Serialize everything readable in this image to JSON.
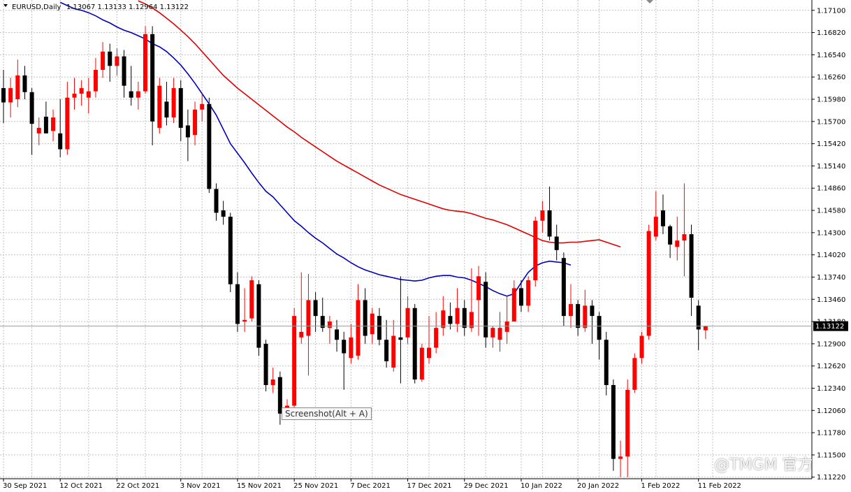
{
  "header": {
    "symbol": "EURUSD,Daily",
    "ohlc": "1.13067 1.13133 1.12964 1.13122"
  },
  "tooltip": "Screenshot(Alt + A)",
  "watermark": "@TMGM 官方",
  "colors": {
    "bull": "#ff0000",
    "bear": "#000000",
    "ma_fast": "#0000bb",
    "ma_slow": "#e00000",
    "grid": "#c0c0c0",
    "price_tag_bg": "#000000"
  },
  "chart_data": {
    "type": "candlestick",
    "title": "EURUSD,Daily",
    "ylim": [
      1.112,
      1.1723
    ],
    "y_ticks": [
      "1.17100",
      "1.16820",
      "1.16540",
      "1.16260",
      "1.15980",
      "1.15700",
      "1.15420",
      "1.15140",
      "1.14860",
      "1.14580",
      "1.14300",
      "1.14020",
      "1.13740",
      "1.13460",
      "1.13180",
      "1.12900",
      "1.12620",
      "1.12340",
      "1.12060",
      "1.11780",
      "1.11500",
      "1.11220"
    ],
    "x_labels": [
      {
        "index": 0,
        "label": "30 Sep 2021"
      },
      {
        "index": 8,
        "label": "12 Oct 2021"
      },
      {
        "index": 16,
        "label": "22 Oct 2021"
      },
      {
        "index": 25,
        "label": "3 Nov 2021"
      },
      {
        "index": 33,
        "label": "15 Nov 2021"
      },
      {
        "index": 41,
        "label": "25 Nov 2021"
      },
      {
        "index": 49,
        "label": "7 Dec 2021"
      },
      {
        "index": 57,
        "label": "17 Dec 2021"
      },
      {
        "index": 65,
        "label": "29 Dec 2021"
      },
      {
        "index": 73,
        "label": "10 Jan 2022"
      },
      {
        "index": 81,
        "label": "20 Jan 2022"
      },
      {
        "index": 90,
        "label": "1 Feb 2022"
      },
      {
        "index": 98,
        "label": "11 Feb 2022"
      }
    ],
    "current_price": "1.13122",
    "grid": true,
    "candles": [
      {
        "o": 1.1612,
        "h": 1.1635,
        "l": 1.1568,
        "c": 1.1594
      },
      {
        "o": 1.1594,
        "h": 1.1625,
        "l": 1.1575,
        "c": 1.1612
      },
      {
        "o": 1.1598,
        "h": 1.1648,
        "l": 1.1588,
        "c": 1.1628
      },
      {
        "o": 1.1628,
        "h": 1.164,
        "l": 1.1598,
        "c": 1.1607
      },
      {
        "o": 1.1607,
        "h": 1.1612,
        "l": 1.1528,
        "c": 1.1567
      },
      {
        "o": 1.1555,
        "h": 1.1575,
        "l": 1.154,
        "c": 1.1562
      },
      {
        "o": 1.1576,
        "h": 1.1595,
        "l": 1.1555,
        "c": 1.1555
      },
      {
        "o": 1.1558,
        "h": 1.1585,
        "l": 1.1545,
        "c": 1.1575
      },
      {
        "o": 1.1555,
        "h": 1.1598,
        "l": 1.1525,
        "c": 1.1535
      },
      {
        "o": 1.1535,
        "h": 1.162,
        "l": 1.1528,
        "c": 1.16
      },
      {
        "o": 1.16,
        "h": 1.1625,
        "l": 1.1585,
        "c": 1.1605
      },
      {
        "o": 1.1605,
        "h": 1.1622,
        "l": 1.159,
        "c": 1.1612
      },
      {
        "o": 1.16,
        "h": 1.1625,
        "l": 1.158,
        "c": 1.1608
      },
      {
        "o": 1.1608,
        "h": 1.165,
        "l": 1.16,
        "c": 1.1635
      },
      {
        "o": 1.1635,
        "h": 1.167,
        "l": 1.1625,
        "c": 1.1658
      },
      {
        "o": 1.1658,
        "h": 1.1668,
        "l": 1.162,
        "c": 1.164
      },
      {
        "o": 1.164,
        "h": 1.1662,
        "l": 1.1628,
        "c": 1.1652
      },
      {
        "o": 1.1652,
        "h": 1.166,
        "l": 1.16,
        "c": 1.1615
      },
      {
        "o": 1.1608,
        "h": 1.164,
        "l": 1.159,
        "c": 1.16
      },
      {
        "o": 1.16,
        "h": 1.162,
        "l": 1.1585,
        "c": 1.1608
      },
      {
        "o": 1.1608,
        "h": 1.169,
        "l": 1.1605,
        "c": 1.168
      },
      {
        "o": 1.168,
        "h": 1.169,
        "l": 1.154,
        "c": 1.157
      },
      {
        "o": 1.1562,
        "h": 1.1625,
        "l": 1.1555,
        "c": 1.1615
      },
      {
        "o": 1.1595,
        "h": 1.162,
        "l": 1.1565,
        "c": 1.1575
      },
      {
        "o": 1.1575,
        "h": 1.1625,
        "l": 1.1568,
        "c": 1.1612
      },
      {
        "o": 1.1612,
        "h": 1.1622,
        "l": 1.1545,
        "c": 1.1562
      },
      {
        "o": 1.1565,
        "h": 1.1585,
        "l": 1.152,
        "c": 1.155
      },
      {
        "o": 1.1553,
        "h": 1.1595,
        "l": 1.154,
        "c": 1.1585
      },
      {
        "o": 1.1585,
        "h": 1.1605,
        "l": 1.157,
        "c": 1.1592
      },
      {
        "o": 1.1592,
        "h": 1.16,
        "l": 1.148,
        "c": 1.1485
      },
      {
        "o": 1.1485,
        "h": 1.1492,
        "l": 1.1445,
        "c": 1.1455
      },
      {
        "o": 1.1458,
        "h": 1.147,
        "l": 1.144,
        "c": 1.145
      },
      {
        "o": 1.145,
        "h": 1.1455,
        "l": 1.1355,
        "c": 1.1365
      },
      {
        "o": 1.1365,
        "h": 1.138,
        "l": 1.1305,
        "c": 1.1315
      },
      {
        "o": 1.1318,
        "h": 1.136,
        "l": 1.1305,
        "c": 1.132
      },
      {
        "o": 1.1322,
        "h": 1.1375,
        "l": 1.1318,
        "c": 1.137
      },
      {
        "o": 1.1365,
        "h": 1.137,
        "l": 1.1275,
        "c": 1.1285
      },
      {
        "o": 1.129,
        "h": 1.1295,
        "l": 1.123,
        "c": 1.1238
      },
      {
        "o": 1.1238,
        "h": 1.126,
        "l": 1.1228,
        "c": 1.1245
      },
      {
        "o": 1.1248,
        "h": 1.1255,
        "l": 1.1188,
        "c": 1.1202
      },
      {
        "o": 1.1202,
        "h": 1.122,
        "l": 1.1194,
        "c": 1.1212
      },
      {
        "o": 1.1212,
        "h": 1.1335,
        "l": 1.121,
        "c": 1.1325
      },
      {
        "o": 1.1298,
        "h": 1.138,
        "l": 1.129,
        "c": 1.1305
      },
      {
        "o": 1.13,
        "h": 1.1378,
        "l": 1.125,
        "c": 1.1345
      },
      {
        "o": 1.1345,
        "h": 1.1355,
        "l": 1.1305,
        "c": 1.1325
      },
      {
        "o": 1.1325,
        "h": 1.1348,
        "l": 1.1305,
        "c": 1.131
      },
      {
        "o": 1.131,
        "h": 1.1325,
        "l": 1.129,
        "c": 1.1318
      },
      {
        "o": 1.1308,
        "h": 1.132,
        "l": 1.128,
        "c": 1.1295
      },
      {
        "o": 1.1295,
        "h": 1.1305,
        "l": 1.1232,
        "c": 1.1278
      },
      {
        "o": 1.1272,
        "h": 1.1315,
        "l": 1.1265,
        "c": 1.1298
      },
      {
        "o": 1.1275,
        "h": 1.1365,
        "l": 1.127,
        "c": 1.1345
      },
      {
        "o": 1.1345,
        "h": 1.136,
        "l": 1.129,
        "c": 1.13
      },
      {
        "o": 1.1302,
        "h": 1.1335,
        "l": 1.129,
        "c": 1.1328
      },
      {
        "o": 1.1325,
        "h": 1.1335,
        "l": 1.1288,
        "c": 1.1295
      },
      {
        "o": 1.1295,
        "h": 1.132,
        "l": 1.126,
        "c": 1.1268
      },
      {
        "o": 1.126,
        "h": 1.132,
        "l": 1.1255,
        "c": 1.13
      },
      {
        "o": 1.1298,
        "h": 1.1375,
        "l": 1.124,
        "c": 1.1295
      },
      {
        "o": 1.1298,
        "h": 1.135,
        "l": 1.129,
        "c": 1.1335
      },
      {
        "o": 1.1335,
        "h": 1.134,
        "l": 1.124,
        "c": 1.1245
      },
      {
        "o": 1.1245,
        "h": 1.129,
        "l": 1.1242,
        "c": 1.1285
      },
      {
        "o": 1.1272,
        "h": 1.1325,
        "l": 1.1265,
        "c": 1.1285
      },
      {
        "o": 1.1285,
        "h": 1.133,
        "l": 1.1278,
        "c": 1.131
      },
      {
        "o": 1.131,
        "h": 1.135,
        "l": 1.13,
        "c": 1.1332
      },
      {
        "o": 1.1325,
        "h": 1.1342,
        "l": 1.1308,
        "c": 1.1315
      },
      {
        "o": 1.1315,
        "h": 1.136,
        "l": 1.1305,
        "c": 1.1335
      },
      {
        "o": 1.1335,
        "h": 1.1345,
        "l": 1.13,
        "c": 1.131
      },
      {
        "o": 1.131,
        "h": 1.1385,
        "l": 1.1305,
        "c": 1.133
      },
      {
        "o": 1.1345,
        "h": 1.1388,
        "l": 1.13,
        "c": 1.1375
      },
      {
        "o": 1.1368,
        "h": 1.138,
        "l": 1.1285,
        "c": 1.1298
      },
      {
        "o": 1.1298,
        "h": 1.1312,
        "l": 1.1285,
        "c": 1.131
      },
      {
        "o": 1.1295,
        "h": 1.133,
        "l": 1.128,
        "c": 1.131
      },
      {
        "o": 1.1305,
        "h": 1.135,
        "l": 1.129,
        "c": 1.1318
      },
      {
        "o": 1.1318,
        "h": 1.137,
        "l": 1.1318,
        "c": 1.136
      },
      {
        "o": 1.136,
        "h": 1.137,
        "l": 1.133,
        "c": 1.1338
      },
      {
        "o": 1.1338,
        "h": 1.1375,
        "l": 1.133,
        "c": 1.137
      },
      {
        "o": 1.137,
        "h": 1.145,
        "l": 1.1362,
        "c": 1.1445
      },
      {
        "o": 1.1445,
        "h": 1.147,
        "l": 1.143,
        "c": 1.1458
      },
      {
        "o": 1.1458,
        "h": 1.1488,
        "l": 1.142,
        "c": 1.1425
      },
      {
        "o": 1.1425,
        "h": 1.144,
        "l": 1.1395,
        "c": 1.1408
      },
      {
        "o": 1.1398,
        "h": 1.1405,
        "l": 1.1312,
        "c": 1.1325
      },
      {
        "o": 1.1325,
        "h": 1.1365,
        "l": 1.131,
        "c": 1.134
      },
      {
        "o": 1.134,
        "h": 1.1345,
        "l": 1.13,
        "c": 1.131
      },
      {
        "o": 1.131,
        "h": 1.1358,
        "l": 1.1305,
        "c": 1.1338
      },
      {
        "o": 1.1338,
        "h": 1.1345,
        "l": 1.129,
        "c": 1.1325
      },
      {
        "o": 1.1325,
        "h": 1.133,
        "l": 1.127,
        "c": 1.1295
      },
      {
        "o": 1.1295,
        "h": 1.1305,
        "l": 1.1225,
        "c": 1.1238
      },
      {
        "o": 1.1238,
        "h": 1.1245,
        "l": 1.113,
        "c": 1.1145
      },
      {
        "o": 1.1145,
        "h": 1.1168,
        "l": 1.1122,
        "c": 1.1148
      },
      {
        "o": 1.1148,
        "h": 1.1245,
        "l": 1.1122,
        "c": 1.1232
      },
      {
        "o": 1.1232,
        "h": 1.1278,
        "l": 1.1228,
        "c": 1.1272
      },
      {
        "o": 1.1272,
        "h": 1.1305,
        "l": 1.1265,
        "c": 1.13
      },
      {
        "o": 1.13,
        "h": 1.144,
        "l": 1.1295,
        "c": 1.1432
      },
      {
        "o": 1.1425,
        "h": 1.1482,
        "l": 1.142,
        "c": 1.145
      },
      {
        "o": 1.1458,
        "h": 1.1478,
        "l": 1.1428,
        "c": 1.1438
      },
      {
        "o": 1.1438,
        "h": 1.144,
        "l": 1.1398,
        "c": 1.1415
      },
      {
        "o": 1.1412,
        "h": 1.145,
        "l": 1.1395,
        "c": 1.142
      },
      {
        "o": 1.142,
        "h": 1.1492,
        "l": 1.1375,
        "c": 1.1428
      },
      {
        "o": 1.1428,
        "h": 1.144,
        "l": 1.1325,
        "c": 1.1348
      },
      {
        "o": 1.1338,
        "h": 1.1345,
        "l": 1.1282,
        "c": 1.1308
      },
      {
        "o": 1.1307,
        "h": 1.1313,
        "l": 1.1296,
        "c": 1.1312
      }
    ],
    "ma_fast": {
      "start": 8,
      "values": [
        1.172,
        1.1716,
        1.1712,
        1.171,
        1.1707,
        1.1703,
        1.1698,
        1.1694,
        1.1689,
        1.1685,
        1.1682,
        1.1678,
        1.1674,
        1.1668,
        1.1664,
        1.1658,
        1.165,
        1.1641,
        1.163,
        1.1618,
        1.1605,
        1.1592,
        1.1578,
        1.156,
        1.1542,
        1.153,
        1.1518,
        1.1505,
        1.1493,
        1.1482,
        1.1475,
        1.1465,
        1.1455,
        1.1445,
        1.1438,
        1.143,
        1.1423,
        1.1417,
        1.141,
        1.1403,
        1.1398,
        1.1392,
        1.1387,
        1.1383,
        1.138,
        1.1377,
        1.1375,
        1.1373,
        1.1371,
        1.137,
        1.1369,
        1.137,
        1.1373,
        1.1375,
        1.1376,
        1.1376,
        1.1374,
        1.1373,
        1.137,
        1.1366,
        1.1362,
        1.1357,
        1.1353,
        1.135,
        1.1353,
        1.1367,
        1.138,
        1.1388,
        1.1392,
        1.1394,
        1.1393,
        1.1392,
        1.1389
      ]
    },
    "ma_slow": {
      "start": 19,
      "values": [
        1.1722,
        1.1718,
        1.1713,
        1.1707,
        1.17,
        1.1693,
        1.1685,
        1.1677,
        1.1668,
        1.1658,
        1.1648,
        1.1638,
        1.1628,
        1.162,
        1.1612,
        1.1605,
        1.1598,
        1.1591,
        1.1584,
        1.1577,
        1.157,
        1.1563,
        1.1557,
        1.155,
        1.1544,
        1.1538,
        1.1532,
        1.1526,
        1.152,
        1.1515,
        1.151,
        1.1505,
        1.15,
        1.1495,
        1.149,
        1.1486,
        1.1482,
        1.1478,
        1.1475,
        1.1472,
        1.1469,
        1.1466,
        1.1463,
        1.146,
        1.1458,
        1.1457,
        1.1456,
        1.1454,
        1.1451,
        1.1448,
        1.1446,
        1.1443,
        1.144,
        1.1436,
        1.1432,
        1.1428,
        1.1424,
        1.142,
        1.1418,
        1.1417,
        1.1417,
        1.1418,
        1.1418,
        1.1419,
        1.142,
        1.1421,
        1.1418,
        1.1415,
        1.1412
      ]
    }
  }
}
